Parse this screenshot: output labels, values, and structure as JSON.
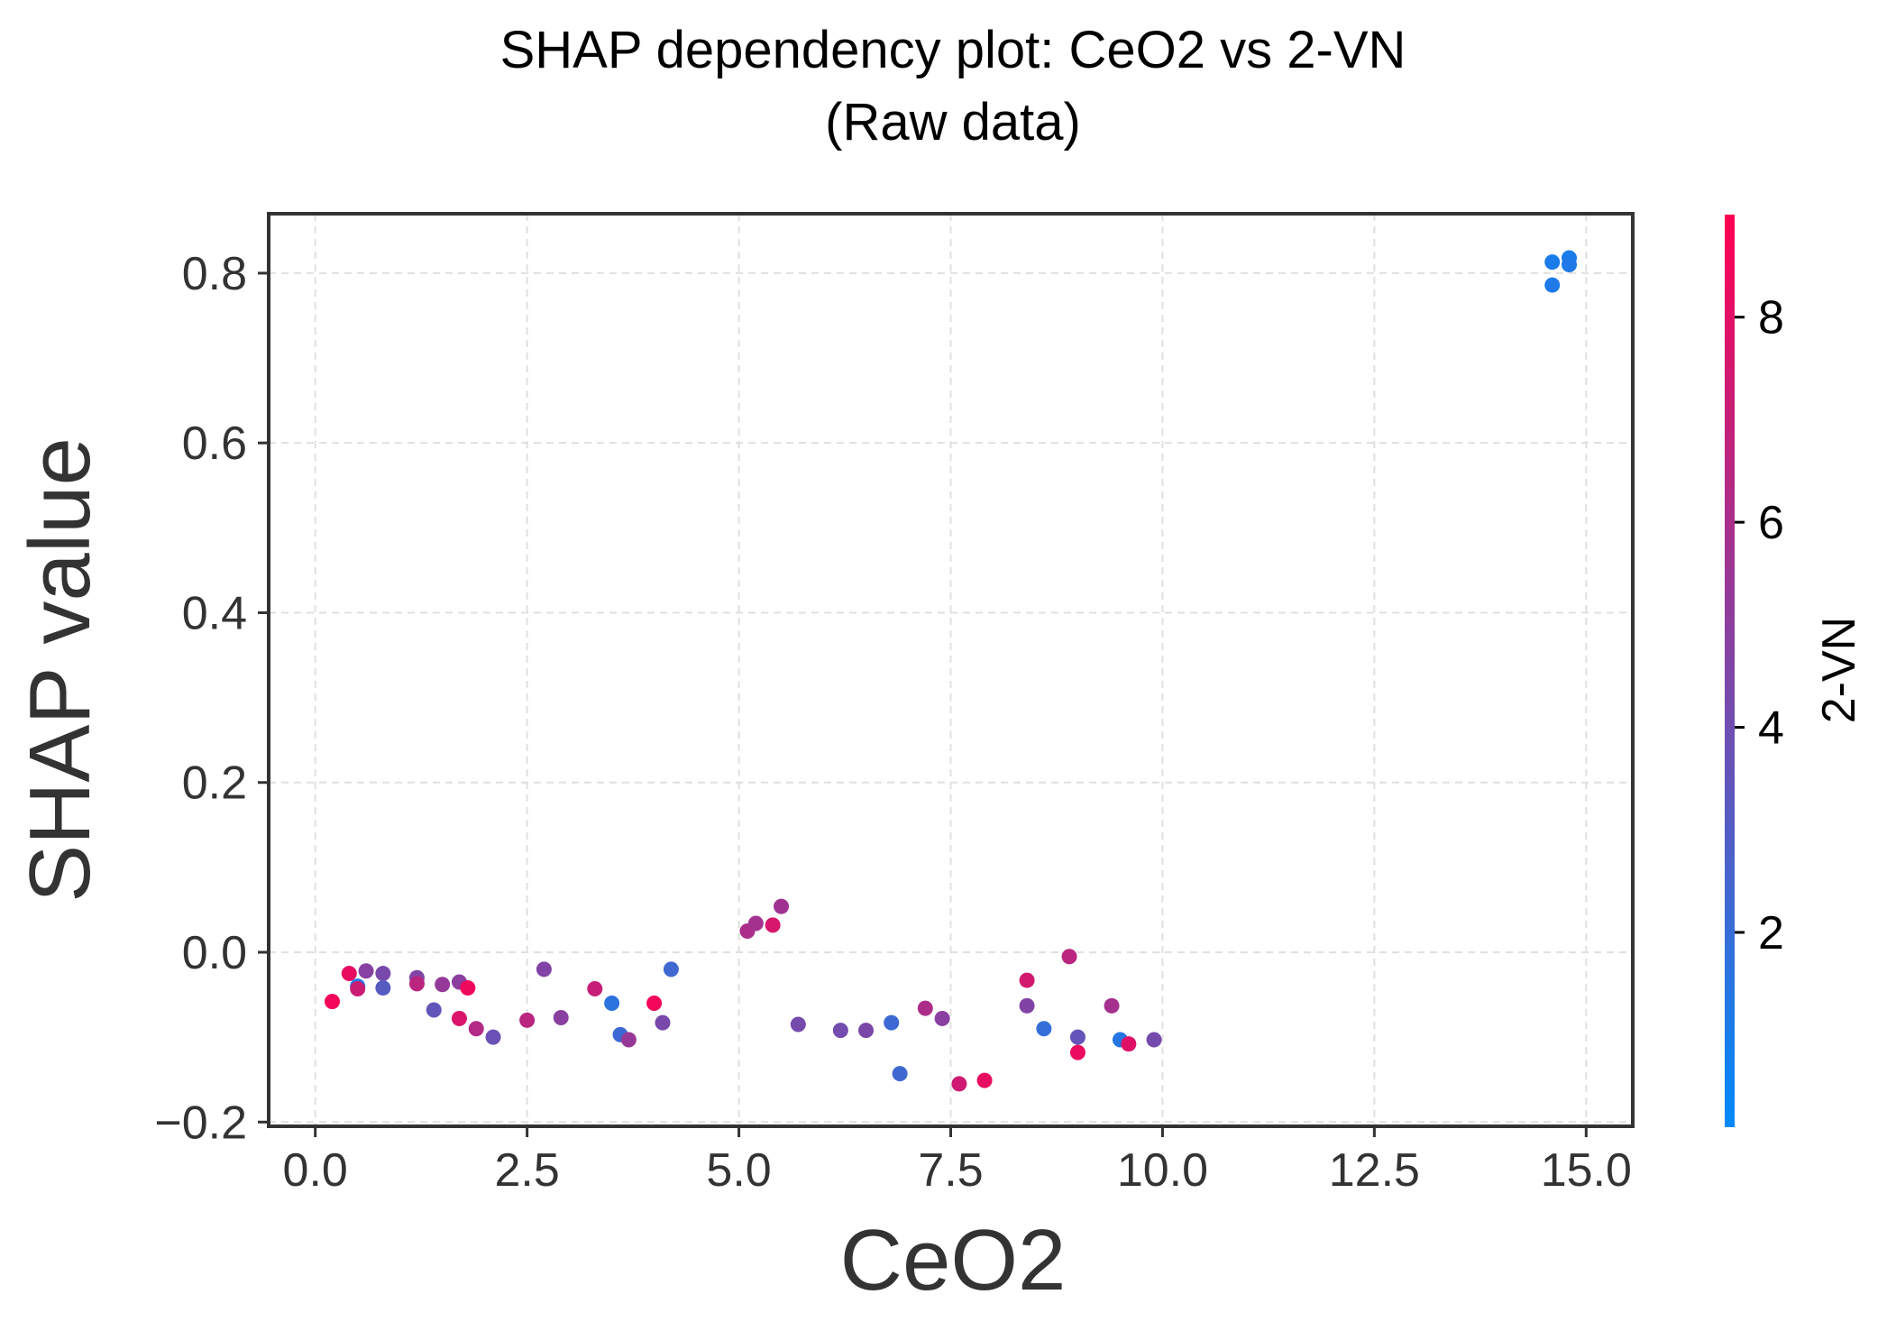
{
  "chart_data": {
    "type": "scatter",
    "title": "SHAP dependency plot: CeO2 vs 2-VN",
    "subtitle": "(Raw data)",
    "xlabel": "CeO2",
    "ylabel": "SHAP value",
    "colorbar_label": "2-VN",
    "xlim": [
      -0.55,
      15.55
    ],
    "ylim": [
      -0.205,
      0.87
    ],
    "xticks": [
      0,
      2.5,
      5,
      7.5,
      10,
      12.5,
      15
    ],
    "xtick_labels": [
      "0.0",
      "2.5",
      "5.0",
      "7.5",
      "10.0",
      "12.5",
      "15.0"
    ],
    "yticks": [
      -0.2,
      0,
      0.2,
      0.4,
      0.6,
      0.8
    ],
    "ytick_labels": [
      "−0.2",
      "0.0",
      "0.2",
      "0.4",
      "0.6",
      "0.8"
    ],
    "colorbar_range": [
      0.1,
      9.0
    ],
    "colorbar_ticks": [
      2,
      4,
      6,
      8
    ],
    "colorbar_tick_labels": [
      "2",
      "4",
      "6",
      "8"
    ],
    "colormap": [
      "#008afb",
      "#ff0052"
    ],
    "grid": true,
    "points": [
      {
        "x": 0.2,
        "y": -0.058,
        "c": 8.6
      },
      {
        "x": 0.4,
        "y": -0.025,
        "c": 8.2
      },
      {
        "x": 0.5,
        "y": -0.04,
        "c": 1.2
      },
      {
        "x": 0.5,
        "y": -0.043,
        "c": 7.2
      },
      {
        "x": 0.6,
        "y": -0.022,
        "c": 4.8
      },
      {
        "x": 0.8,
        "y": -0.025,
        "c": 4.3
      },
      {
        "x": 0.8,
        "y": -0.042,
        "c": 3.1
      },
      {
        "x": 1.2,
        "y": -0.03,
        "c": 4.6
      },
      {
        "x": 1.2,
        "y": -0.037,
        "c": 6.6
      },
      {
        "x": 1.4,
        "y": -0.068,
        "c": 3.5
      },
      {
        "x": 1.5,
        "y": -0.038,
        "c": 5.3
      },
      {
        "x": 1.7,
        "y": -0.035,
        "c": 5.0
      },
      {
        "x": 1.7,
        "y": -0.078,
        "c": 7.7
      },
      {
        "x": 1.8,
        "y": -0.042,
        "c": 8.4
      },
      {
        "x": 1.9,
        "y": -0.09,
        "c": 6.3
      },
      {
        "x": 2.1,
        "y": -0.1,
        "c": 3.8
      },
      {
        "x": 2.5,
        "y": -0.08,
        "c": 6.6
      },
      {
        "x": 2.7,
        "y": -0.02,
        "c": 4.6
      },
      {
        "x": 2.9,
        "y": -0.077,
        "c": 4.9
      },
      {
        "x": 3.3,
        "y": -0.043,
        "c": 7.0
      },
      {
        "x": 3.5,
        "y": -0.06,
        "c": 1.6
      },
      {
        "x": 3.6,
        "y": -0.097,
        "c": 2.2
      },
      {
        "x": 3.7,
        "y": -0.103,
        "c": 5.4
      },
      {
        "x": 4.0,
        "y": -0.06,
        "c": 8.6
      },
      {
        "x": 4.1,
        "y": -0.083,
        "c": 4.3
      },
      {
        "x": 4.2,
        "y": -0.02,
        "c": 2.3
      },
      {
        "x": 5.1,
        "y": 0.025,
        "c": 6.1
      },
      {
        "x": 5.2,
        "y": 0.034,
        "c": 5.8
      },
      {
        "x": 5.4,
        "y": 0.032,
        "c": 7.6
      },
      {
        "x": 5.5,
        "y": 0.054,
        "c": 5.7
      },
      {
        "x": 5.7,
        "y": -0.085,
        "c": 4.2
      },
      {
        "x": 6.2,
        "y": -0.092,
        "c": 4.1
      },
      {
        "x": 6.5,
        "y": -0.092,
        "c": 4.4
      },
      {
        "x": 6.8,
        "y": -0.083,
        "c": 2.2
      },
      {
        "x": 6.9,
        "y": -0.143,
        "c": 2.3
      },
      {
        "x": 7.2,
        "y": -0.066,
        "c": 6.1
      },
      {
        "x": 7.4,
        "y": -0.078,
        "c": 4.9
      },
      {
        "x": 7.6,
        "y": -0.155,
        "c": 7.3
      },
      {
        "x": 7.9,
        "y": -0.151,
        "c": 8.2
      },
      {
        "x": 8.4,
        "y": -0.033,
        "c": 7.4
      },
      {
        "x": 8.4,
        "y": -0.063,
        "c": 4.6
      },
      {
        "x": 8.6,
        "y": -0.09,
        "c": 1.9
      },
      {
        "x": 8.9,
        "y": -0.005,
        "c": 6.6
      },
      {
        "x": 9.0,
        "y": -0.1,
        "c": 3.6
      },
      {
        "x": 9.0,
        "y": -0.118,
        "c": 8.3
      },
      {
        "x": 9.4,
        "y": -0.063,
        "c": 5.9
      },
      {
        "x": 9.5,
        "y": -0.103,
        "c": 1.4
      },
      {
        "x": 9.6,
        "y": -0.108,
        "c": 7.9
      },
      {
        "x": 9.9,
        "y": -0.103,
        "c": 4.2
      },
      {
        "x": 14.6,
        "y": 0.813,
        "c": 1.0
      },
      {
        "x": 14.6,
        "y": 0.786,
        "c": 1.1
      },
      {
        "x": 14.8,
        "y": 0.818,
        "c": 1.0
      },
      {
        "x": 14.8,
        "y": 0.81,
        "c": 1.2
      }
    ]
  }
}
